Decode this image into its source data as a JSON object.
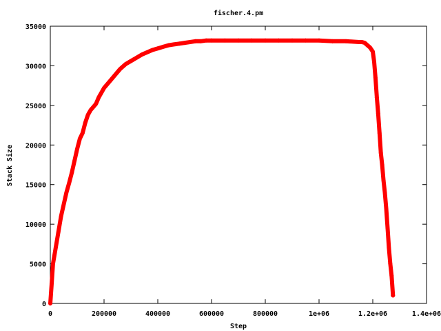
{
  "chart_data": {
    "type": "scatter",
    "title": "fischer.4.pm",
    "xlabel": "Step",
    "ylabel": "Stack Size",
    "xlim": [
      0,
      1400000
    ],
    "ylim": [
      0,
      35000
    ],
    "xticks": [
      0,
      200000,
      400000,
      600000,
      800000,
      1000000,
      1200000,
      1400000
    ],
    "xtick_labels": [
      "0",
      "200000",
      "400000",
      "600000",
      "800000",
      "1e+06",
      "1.2e+06",
      "1.4e+06"
    ],
    "yticks": [
      0,
      5000,
      10000,
      15000,
      20000,
      25000,
      30000,
      35000
    ],
    "ytick_labels": [
      "0",
      "5000",
      "10000",
      "15000",
      "20000",
      "25000",
      "30000",
      "35000"
    ],
    "grid": false,
    "legend": "none",
    "marker": "+",
    "colors": {
      "series": "#ff0000",
      "axes": "#000000"
    },
    "series": [
      {
        "x": [
          0,
          5000,
          10000,
          20000,
          30000,
          40000,
          50000,
          60000,
          70000,
          80000,
          90000,
          100000,
          110000,
          120000,
          130000,
          140000,
          150000,
          160000,
          170000,
          180000,
          190000,
          200000,
          220000,
          240000,
          260000,
          280000,
          300000,
          320000,
          340000,
          360000,
          380000,
          400000,
          420000,
          440000,
          460000,
          480000,
          500000,
          520000,
          540000,
          560000,
          580000,
          600000,
          650000,
          700000,
          750000,
          800000,
          850000,
          900000,
          950000,
          1000000,
          1050000,
          1100000,
          1150000,
          1160000,
          1170000,
          1180000,
          1190000,
          1200000,
          1205000,
          1210000,
          1215000,
          1220000,
          1225000,
          1230000,
          1235000,
          1240000,
          1245000,
          1250000,
          1255000,
          1260000,
          1265000,
          1270000,
          1275000
        ],
        "y": [
          0,
          2500,
          5000,
          7000,
          9000,
          11000,
          12500,
          14000,
          15200,
          16500,
          18000,
          19500,
          20800,
          21500,
          22800,
          23800,
          24400,
          24800,
          25200,
          26000,
          26600,
          27200,
          28000,
          28800,
          29600,
          30200,
          30600,
          31000,
          31400,
          31700,
          32000,
          32200,
          32400,
          32600,
          32700,
          32800,
          32900,
          33000,
          33100,
          33100,
          33200,
          33200,
          33200,
          33200,
          33200,
          33200,
          33200,
          33200,
          33200,
          33200,
          33100,
          33100,
          33000,
          33000,
          32900,
          32600,
          32300,
          31800,
          30500,
          28500,
          26000,
          24000,
          21500,
          19000,
          17500,
          15500,
          14000,
          12000,
          9500,
          7000,
          5000,
          3500,
          1000
        ]
      }
    ]
  }
}
